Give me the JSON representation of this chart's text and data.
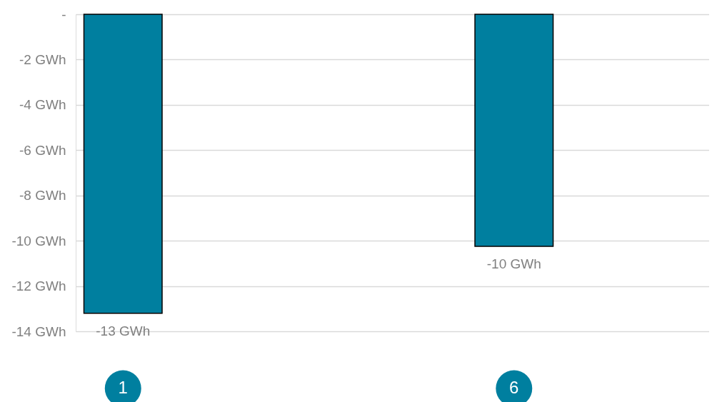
{
  "chart_data": {
    "type": "bar",
    "categories": [
      "1",
      "6"
    ],
    "values": [
      -13.2,
      -10.25
    ],
    "color": "#007f9f",
    "value_labels": [
      "-13   GWh",
      "-10   GWh"
    ],
    "ylim": [
      -14,
      0
    ],
    "yticks": [
      {
        "value": 0,
        "label": "-"
      },
      {
        "value": -2,
        "label": "-2   GWh"
      },
      {
        "value": -4,
        "label": "-4   GWh"
      },
      {
        "value": -6,
        "label": "-6   GWh"
      },
      {
        "value": -8,
        "label": "-8   GWh"
      },
      {
        "value": -10,
        "label": "-10   GWh"
      },
      {
        "value": -12,
        "label": "-12   GWh"
      },
      {
        "value": -14,
        "label": "-14   GWh"
      }
    ],
    "grid": "y"
  }
}
